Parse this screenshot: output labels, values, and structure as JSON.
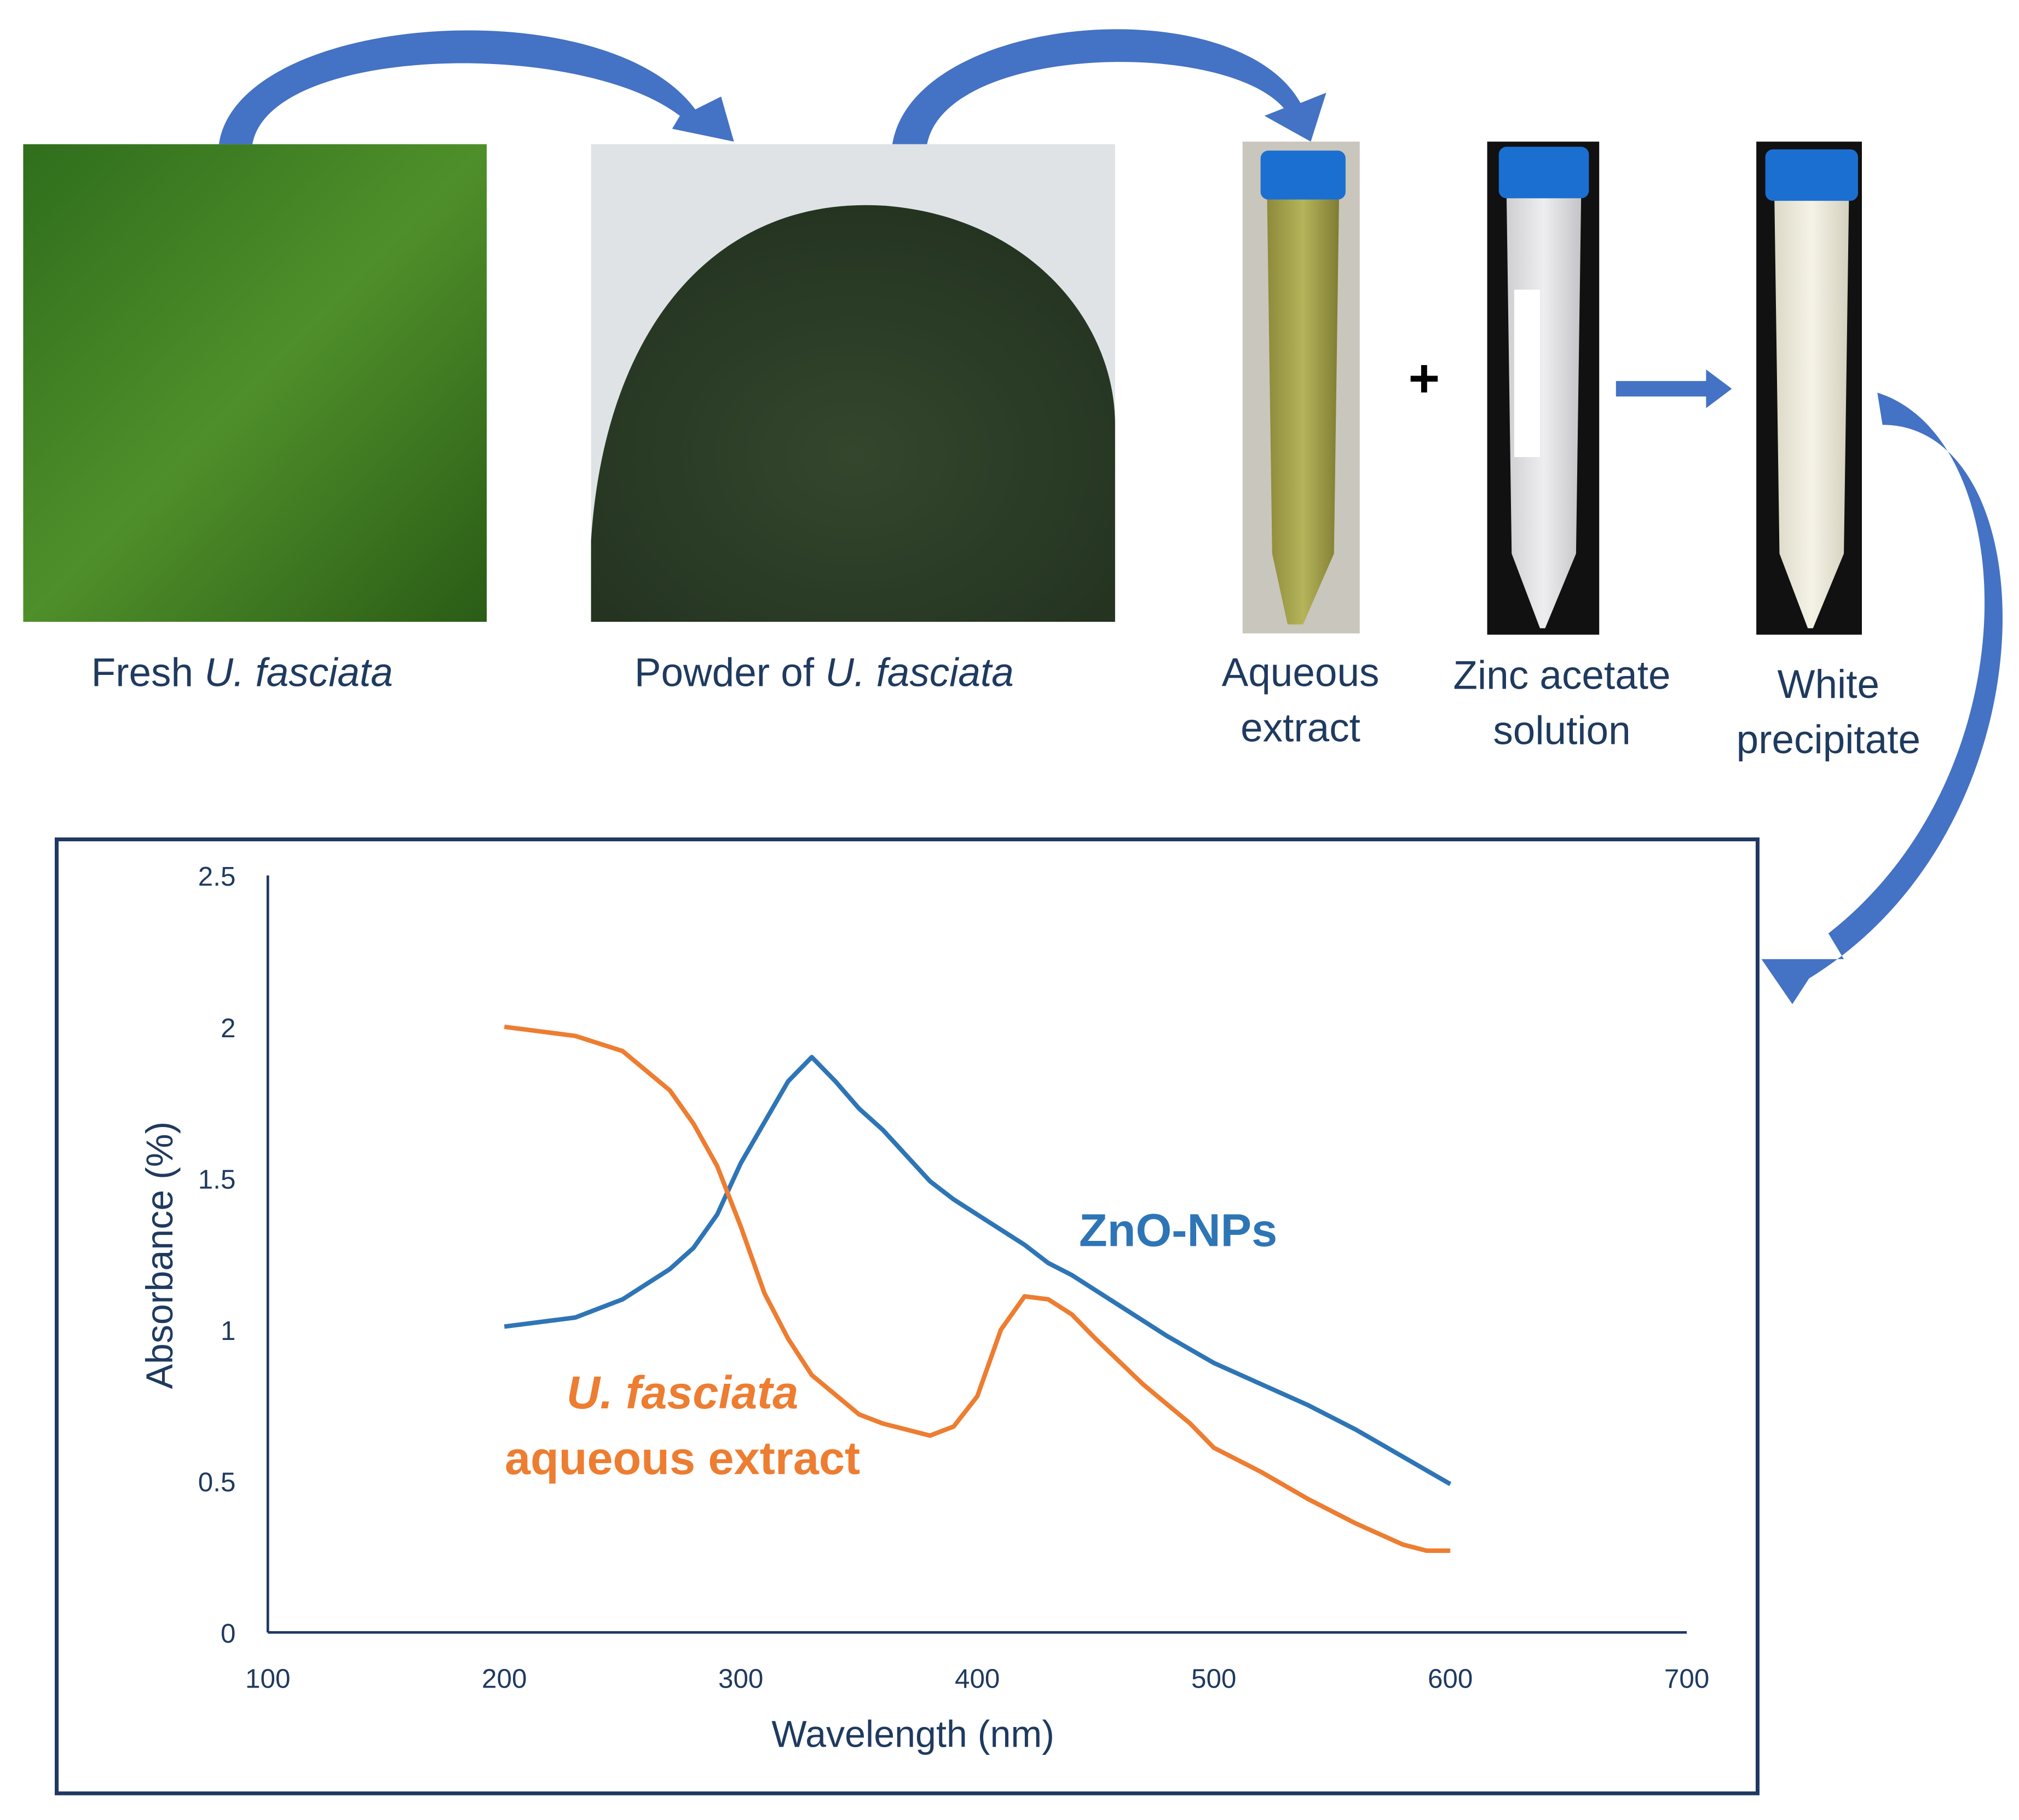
{
  "steps": [
    {
      "label": {
        "plain": "Fresh",
        "italic": "U. fasciata"
      }
    },
    {
      "label": {
        "plain": "Powder of",
        "italic": "U. fasciata"
      }
    },
    {
      "label_lines": [
        "Aqueous",
        "extract"
      ]
    },
    {
      "label_lines": [
        "Zinc acetate",
        "solution"
      ]
    },
    {
      "label_lines": [
        "White",
        "precipitate"
      ]
    }
  ],
  "plus": "+",
  "chart_data": {
    "type": "line",
    "xlabel": "Wavelength (nm)",
    "ylabel": "Absorbance (%)",
    "xlim": [
      100,
      700
    ],
    "ylim": [
      0,
      2.5
    ],
    "xticks": [
      100,
      200,
      300,
      400,
      500,
      600,
      700
    ],
    "yticks": [
      0,
      0.5,
      1,
      1.5,
      2,
      2.5
    ],
    "grid": false,
    "series": [
      {
        "name": [
          "ZnO-NPs"
        ],
        "color": "#2e75b6",
        "x": [
          200,
          230,
          250,
          270,
          280,
          290,
          300,
          320,
          330,
          340,
          350,
          360,
          380,
          390,
          400,
          420,
          430,
          440,
          460,
          480,
          500,
          520,
          540,
          560,
          580,
          600
        ],
        "values": [
          1.01,
          1.04,
          1.1,
          1.2,
          1.27,
          1.38,
          1.55,
          1.82,
          1.9,
          1.82,
          1.73,
          1.66,
          1.49,
          1.43,
          1.38,
          1.28,
          1.22,
          1.18,
          1.08,
          0.98,
          0.89,
          0.82,
          0.75,
          0.67,
          0.58,
          0.49
        ]
      },
      {
        "name": [
          "U. fasciata",
          "aqueous extract"
        ],
        "color": "#ed7d31",
        "x": [
          200,
          210,
          230,
          250,
          270,
          280,
          290,
          300,
          310,
          320,
          330,
          350,
          360,
          380,
          390,
          400,
          410,
          420,
          430,
          440,
          450,
          470,
          490,
          500,
          520,
          540,
          560,
          580,
          590,
          600
        ],
        "values": [
          2.0,
          1.99,
          1.97,
          1.92,
          1.79,
          1.68,
          1.54,
          1.34,
          1.12,
          0.97,
          0.85,
          0.72,
          0.69,
          0.65,
          0.68,
          0.78,
          1.0,
          1.11,
          1.1,
          1.05,
          0.97,
          0.82,
          0.69,
          0.61,
          0.53,
          0.44,
          0.36,
          0.29,
          0.27,
          0.27
        ]
      }
    ]
  }
}
